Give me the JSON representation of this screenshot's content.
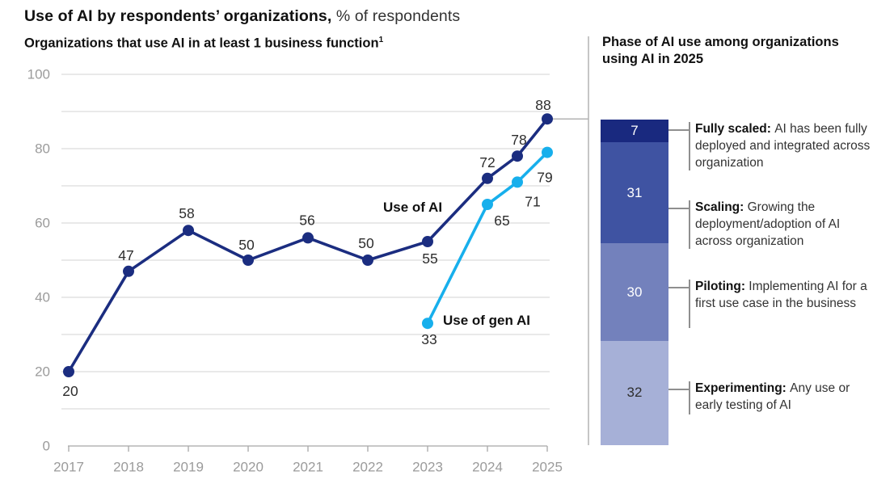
{
  "header": {
    "title_bold": "Use of AI by respondents’ organizations,",
    "title_regular": "% of respondents"
  },
  "left_chart": {
    "subtitle": "Organizations that use AI in at least 1 business function",
    "footnote_marker": "1"
  },
  "chart_data": [
    {
      "type": "line",
      "title": "Organizations that use AI in at least 1 business function",
      "xlabel": "",
      "ylabel": "% of respondents",
      "x_ticks": [
        2017,
        2018,
        2019,
        2020,
        2021,
        2022,
        2023,
        2024,
        2025
      ],
      "y_ticks": [
        0,
        20,
        40,
        60,
        80,
        100
      ],
      "ylim": [
        0,
        100
      ],
      "grid": "horizontal gridlines every 10, light gray",
      "legend_position": "inline labels next to lines",
      "series": [
        {
          "name": "Use of AI",
          "color": "#1b2d80",
          "x": [
            2017,
            2018,
            2019,
            2020,
            2021,
            2022,
            2023,
            2024,
            2024.5,
            2025
          ],
          "values": [
            20,
            47,
            58,
            50,
            56,
            50,
            55,
            72,
            78,
            88
          ]
        },
        {
          "name": "Use of gen AI",
          "color": "#17afec",
          "x": [
            2023,
            2024,
            2024.5,
            2025
          ],
          "values": [
            33,
            65,
            71,
            79
          ]
        }
      ]
    },
    {
      "type": "bar",
      "variant": "single stacked column",
      "title": "Phase of AI use among organizations using AI in 2025",
      "total": 100,
      "segments": [
        {
          "label": "Fully scaled",
          "value": 7,
          "color": "#19297f",
          "value_text_color": "#ffffff",
          "description": "AI has been fully deployed and integrat­ed across organization"
        },
        {
          "label": "Scaling",
          "value": 31,
          "color": "#3f53a2",
          "value_text_color": "#ffffff",
          "description": "Growing the deployment/adoption of AI across organization"
        },
        {
          "label": "Piloting",
          "value": 30,
          "color": "#7381bc",
          "value_text_color": "#ffffff",
          "description": "Implementing AI for a first use case in the business"
        },
        {
          "label": "Experimenting",
          "value": 32,
          "color": "#a6b0d7",
          "value_text_color": "#2e2e2e",
          "description": "Any use or early testing of AI"
        }
      ]
    }
  ]
}
